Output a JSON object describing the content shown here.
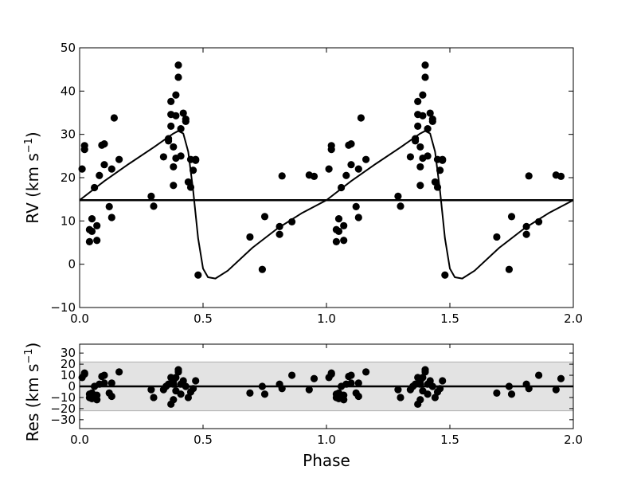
{
  "chart_data": [
    {
      "type": "scatter",
      "panel": "top",
      "title": "",
      "xlabel": "",
      "ylabel": "RV (km s",
      "ylabel_exp": "−1",
      "ylabel_close": ")",
      "xlim": [
        0.0,
        2.0
      ],
      "ylim": [
        -10,
        50
      ],
      "xticks": [
        0.0,
        0.5,
        1.0,
        1.5,
        2.0
      ],
      "xtick_labels": [
        "0.0",
        "0.5",
        "1.0",
        "1.5",
        "2.0"
      ],
      "yticks": [
        -10,
        0,
        10,
        20,
        30,
        40,
        50
      ],
      "ytick_labels": [
        "−10",
        "0",
        "10",
        "20",
        "30",
        "40",
        "50"
      ],
      "systemic_velocity": 14.8,
      "grid": false,
      "legend": "none",
      "model_curve": {
        "phase": [
          0.0,
          0.1,
          0.2,
          0.3,
          0.35,
          0.38,
          0.4,
          0.42,
          0.44,
          0.46,
          0.48,
          0.5,
          0.52,
          0.55,
          0.6,
          0.7,
          0.8,
          0.9,
          1.0
        ],
        "rv": [
          14.8,
          19.2,
          23.2,
          27.0,
          29.0,
          30.2,
          30.8,
          30.2,
          26.0,
          17.0,
          6.0,
          -1.0,
          -3.0,
          -3.3,
          -1.5,
          3.8,
          8.2,
          11.8,
          14.8
        ]
      },
      "points": {
        "x": [
          0.01,
          0.02,
          0.02,
          0.04,
          0.04,
          0.05,
          0.05,
          0.06,
          0.07,
          0.07,
          0.08,
          0.09,
          0.1,
          0.1,
          0.12,
          0.13,
          0.13,
          0.14,
          0.16,
          0.29,
          0.3,
          0.34,
          0.36,
          0.36,
          0.37,
          0.37,
          0.37,
          0.38,
          0.38,
          0.38,
          0.39,
          0.39,
          0.39,
          0.4,
          0.4,
          0.41,
          0.41,
          0.42,
          0.43,
          0.43,
          0.44,
          0.45,
          0.45,
          0.46,
          0.47,
          0.47,
          0.48,
          0.69,
          0.74,
          0.75,
          0.81,
          0.81,
          0.82,
          0.86,
          0.93,
          0.95
        ],
        "y": [
          22.0,
          26.5,
          27.4,
          5.2,
          8.0,
          10.5,
          7.6,
          17.7,
          5.5,
          8.9,
          20.5,
          27.5,
          27.8,
          23.0,
          13.3,
          22.0,
          10.8,
          33.8,
          24.2,
          15.7,
          13.4,
          24.8,
          29.0,
          28.5,
          37.6,
          31.9,
          34.6,
          22.5,
          18.2,
          27.1,
          34.3,
          39.1,
          24.5,
          46.0,
          43.2,
          25.0,
          31.3,
          34.9,
          33.5,
          33.0,
          19.0,
          17.8,
          24.2,
          21.7,
          24.0,
          24.2,
          -2.5,
          6.3,
          -1.2,
          11.0,
          8.7,
          6.9,
          20.4,
          9.8,
          20.6,
          20.3
        ]
      }
    },
    {
      "type": "scatter",
      "panel": "bottom",
      "title": "",
      "xlabel": "Phase",
      "ylabel": "Res (km s",
      "ylabel_exp": "−1",
      "ylabel_close": ")",
      "xlim": [
        0.0,
        2.0
      ],
      "ylim": [
        -38,
        38
      ],
      "xticks": [
        0.0,
        0.5,
        1.0,
        1.5,
        2.0
      ],
      "xtick_labels": [
        "0.0",
        "0.5",
        "1.0",
        "1.5",
        "2.0"
      ],
      "yticks": [
        -30,
        -20,
        -10,
        0,
        10,
        20,
        30
      ],
      "ytick_labels": [
        "−30",
        "−20",
        "−10",
        "0",
        "10",
        "20",
        "30"
      ],
      "shaded_band": [
        -22,
        22
      ],
      "zero_line": 0,
      "grid": false,
      "legend": "none",
      "points": {
        "x": [
          0.01,
          0.02,
          0.02,
          0.04,
          0.04,
          0.05,
          0.05,
          0.06,
          0.07,
          0.07,
          0.08,
          0.09,
          0.1,
          0.1,
          0.12,
          0.13,
          0.13,
          0.16,
          0.29,
          0.3,
          0.34,
          0.35,
          0.36,
          0.37,
          0.37,
          0.38,
          0.38,
          0.38,
          0.39,
          0.39,
          0.4,
          0.4,
          0.41,
          0.41,
          0.42,
          0.43,
          0.44,
          0.45,
          0.46,
          0.47,
          0.69,
          0.74,
          0.75,
          0.81,
          0.82,
          0.86,
          0.93,
          0.95
        ],
        "y": [
          8.0,
          11.0,
          12.0,
          -10.0,
          -7.0,
          -11.0,
          -6.0,
          0.0,
          -12.0,
          -8.0,
          2.0,
          9.0,
          10.0,
          3.0,
          -6.0,
          3.0,
          -9.0,
          13.0,
          -3.0,
          -10.0,
          -3.0,
          0.0,
          2.0,
          8.0,
          -16.0,
          5.0,
          -12.0,
          2.0,
          8.0,
          -4.0,
          15.0,
          13.0,
          -7.0,
          2.0,
          5.0,
          0.0,
          -10.0,
          -5.0,
          -2.0,
          5.0,
          -6.0,
          0.0,
          -7.0,
          2.0,
          -2.0,
          10.0,
          -3.0,
          7.0
        ]
      }
    }
  ]
}
